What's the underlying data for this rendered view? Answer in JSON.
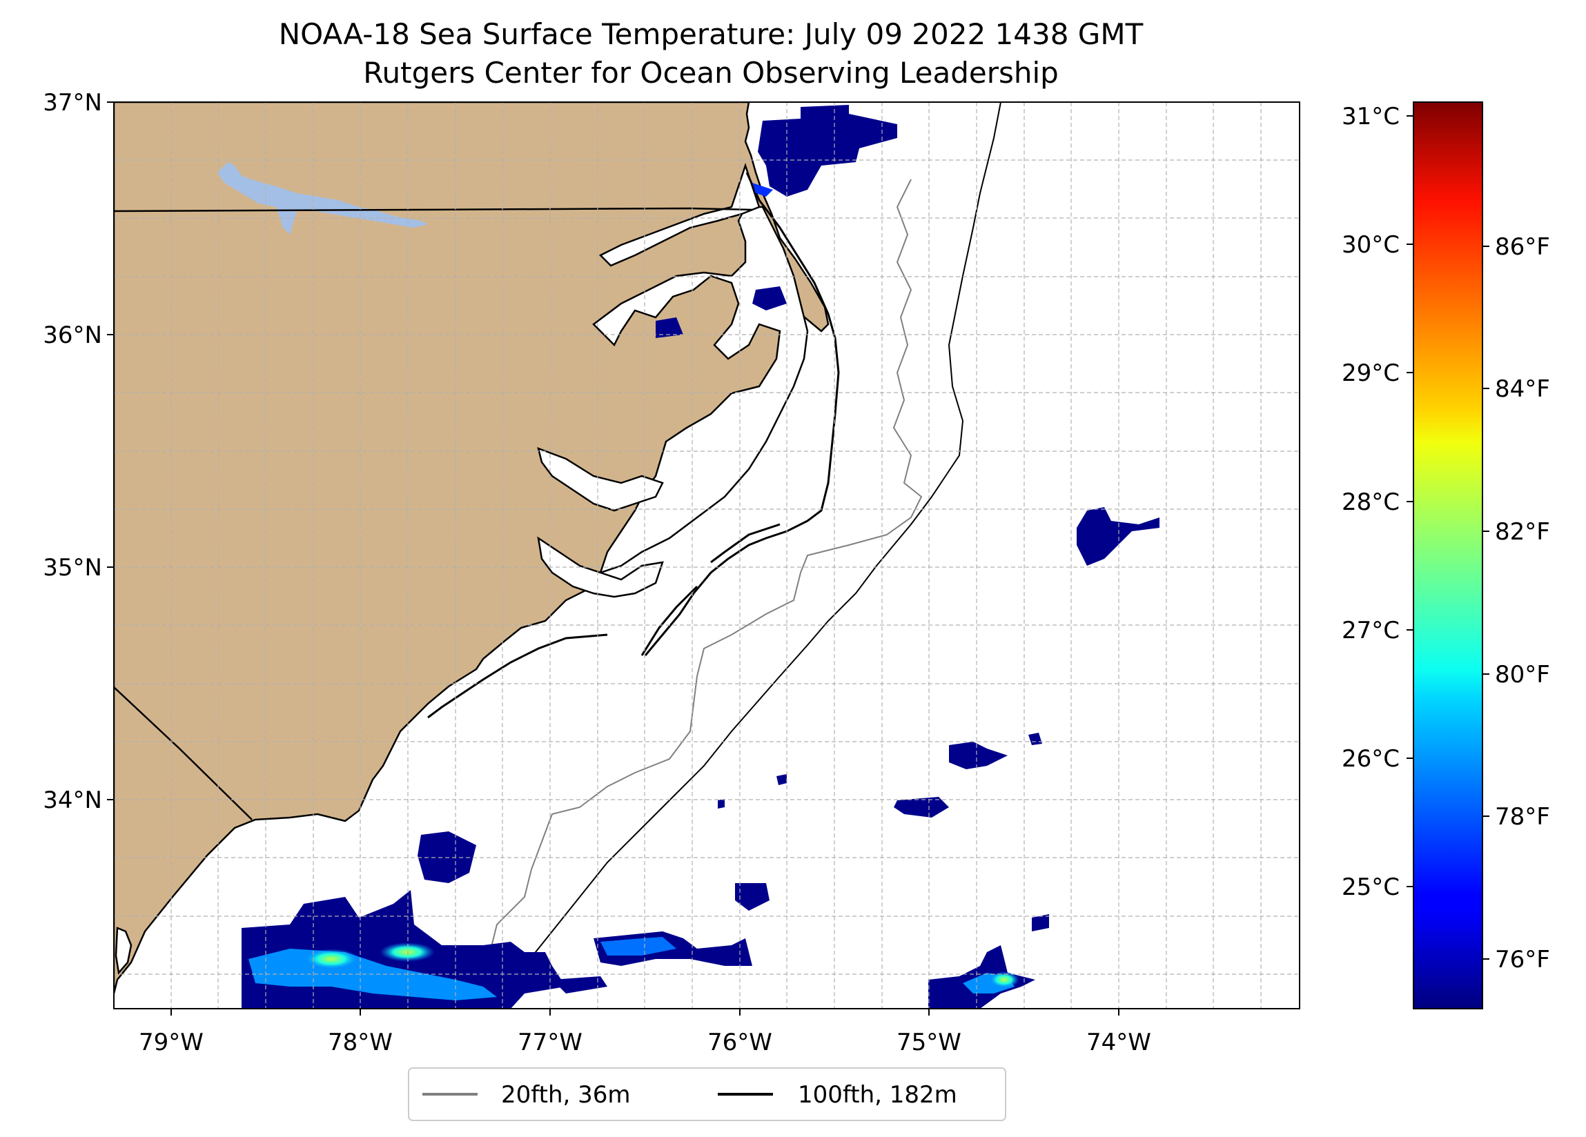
{
  "title": {
    "line1": "NOAA-18 Sea Surface Temperature: July 09 2022 1438 GMT",
    "line2": "Rutgers Center for Ocean Observing Leadership"
  },
  "map": {
    "lon_range": [
      -79.3,
      -73.0
    ],
    "lat_range": [
      33.1,
      37.0
    ],
    "lon_ticks": [
      "79°W",
      "78°W",
      "77°W",
      "76°W",
      "75°W",
      "74°W"
    ],
    "lat_ticks": [
      "37°N",
      "36°N",
      "35°N",
      "34°N"
    ],
    "land_color": "#d2b48c",
    "lake_color": "#a4bfe6",
    "gridlines": "dashed"
  },
  "colorbar": {
    "colormap": "jet",
    "celsius_ticks": [
      "31°C",
      "30°C",
      "29°C",
      "28°C",
      "27°C",
      "26°C",
      "25°C"
    ],
    "fahrenheit_ticks": [
      "86°F",
      "84°F",
      "82°F",
      "80°F",
      "78°F",
      "76°F"
    ]
  },
  "legend": {
    "items": [
      {
        "label": "20fth, 36m",
        "color": "#808080"
      },
      {
        "label": "100fth, 182m",
        "color": "#000000"
      }
    ]
  }
}
